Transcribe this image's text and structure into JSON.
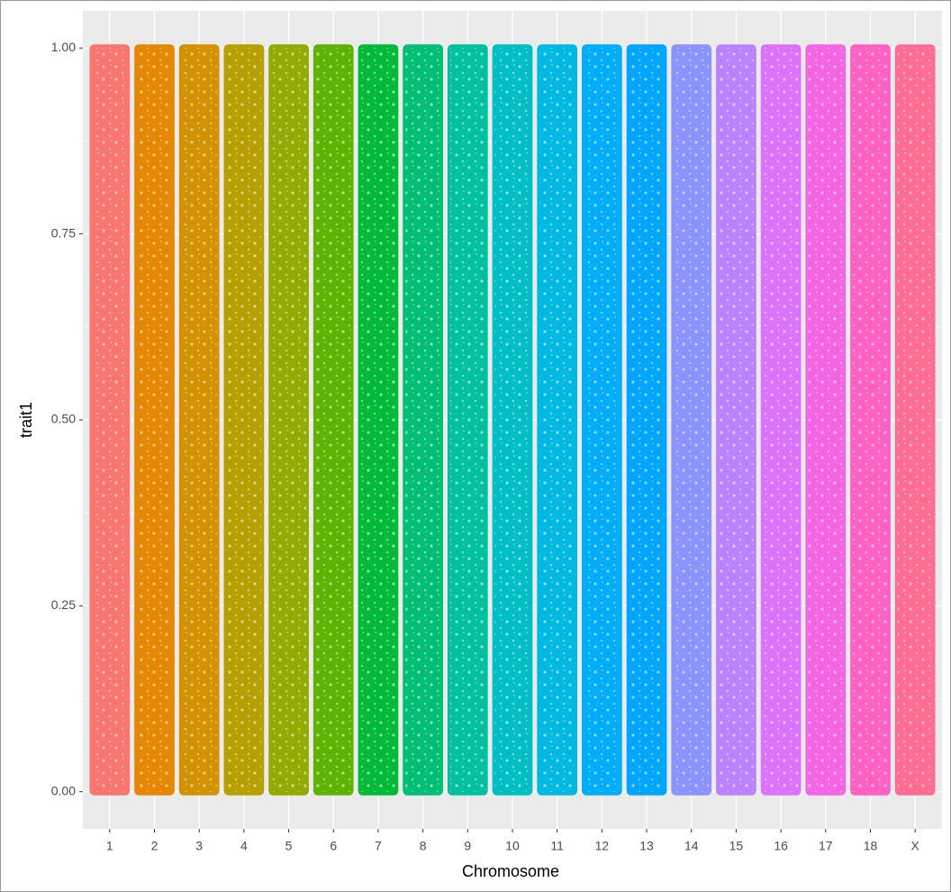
{
  "chart_data": {
    "type": "strip",
    "x_label": "Chromosome",
    "y_label": "trait1",
    "categories": [
      "1",
      "2",
      "3",
      "4",
      "5",
      "6",
      "7",
      "8",
      "9",
      "10",
      "11",
      "12",
      "13",
      "14",
      "15",
      "16",
      "17",
      "18",
      "X"
    ],
    "ymin": [
      0,
      0,
      0,
      0,
      0,
      0,
      0,
      0,
      0,
      0,
      0,
      0,
      0,
      0,
      0,
      0,
      0,
      0,
      0
    ],
    "ymax": [
      1,
      1,
      1,
      1,
      1,
      1,
      1,
      1,
      1,
      1,
      1,
      1,
      1,
      1,
      1,
      1,
      1,
      1,
      1
    ],
    "colors": [
      "#F8766D",
      "#E58700",
      "#D39200",
      "#B79F00",
      "#93AA00",
      "#5EB300",
      "#00BA38",
      "#00BF74",
      "#00C19F",
      "#00BFC4",
      "#00B9E3",
      "#00ADFA",
      "#00A5FF",
      "#8B93FF",
      "#B983FF",
      "#DB72FB",
      "#F564E3",
      "#FF61C3",
      "#FF6C91"
    ],
    "ylim": [
      -0.05,
      1.05
    ],
    "yticks": [
      {
        "value": 0,
        "label": "0.00"
      },
      {
        "value": 0.25,
        "label": "0.25"
      },
      {
        "value": 0.5,
        "label": "0.50"
      },
      {
        "value": 0.75,
        "label": "0.75"
      },
      {
        "value": 1,
        "label": "1.00"
      }
    ],
    "grid": true
  }
}
